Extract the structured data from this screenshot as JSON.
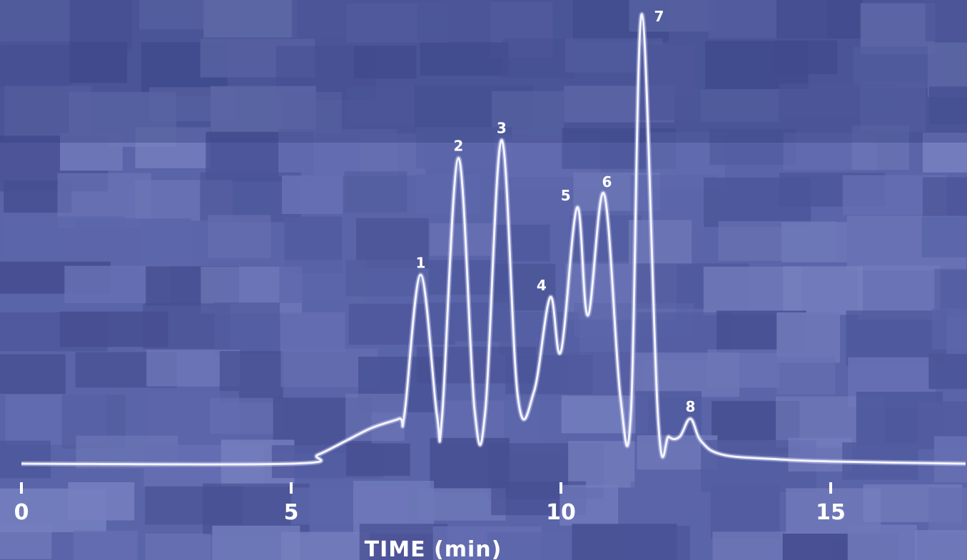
{
  "chart_data": {
    "type": "line",
    "title": "",
    "xlabel": "TIME (min)",
    "ylabel": "",
    "xlim": [
      0,
      17.5
    ],
    "ylim": [
      0,
      100
    ],
    "x_ticks": [
      0,
      5,
      10,
      15
    ],
    "x_tick_labels": [
      "0",
      "5",
      "10",
      "15"
    ],
    "grid": false,
    "legend": "none",
    "line_color": "#f4f4ff",
    "background_color": "#5a64a8",
    "baseline": 0,
    "peaks": [
      {
        "label": "1",
        "x": 7.4,
        "y": 42
      },
      {
        "label": "2",
        "x": 8.1,
        "y": 68
      },
      {
        "label": "3",
        "x": 8.9,
        "y": 72
      },
      {
        "label": "4",
        "x": 9.8,
        "y": 37
      },
      {
        "label": "5",
        "x": 10.3,
        "y": 57
      },
      {
        "label": "6",
        "x": 10.8,
        "y": 60
      },
      {
        "label": "7",
        "x": 11.5,
        "y": 100
      },
      {
        "label": "8",
        "x": 12.4,
        "y": 10
      }
    ],
    "series": [
      {
        "x": [
          0,
          5,
          5.5,
          6,
          6.5,
          7,
          7.1,
          7.4,
          7.7,
          7.8,
          8.1,
          8.4,
          8.6,
          8.9,
          9.2,
          9.5,
          9.8,
          10.0,
          10.3,
          10.5,
          10.8,
          11.1,
          11.3,
          11.5,
          11.8,
          12.0,
          12.2,
          12.4,
          12.6,
          13,
          14,
          15,
          17.5
        ],
        "y": [
          0,
          0,
          2,
          5,
          8,
          10,
          11,
          42,
          11,
          11,
          68,
          12,
          12,
          72,
          15,
          16,
          37,
          25,
          57,
          33,
          60,
          15,
          12,
          100,
          10,
          6,
          6,
          10,
          5,
          2,
          1,
          0.5,
          0
        ]
      }
    ]
  }
}
